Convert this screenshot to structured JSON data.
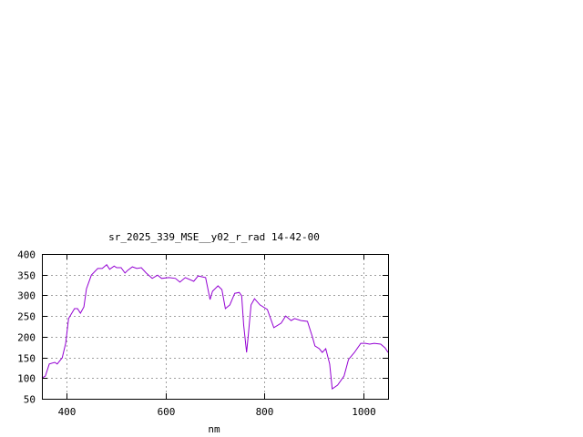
{
  "chart_data": {
    "type": "line",
    "title": "sr_2025_339_MSE__y02_r_rad 14-42-00",
    "xlabel": "nm",
    "ylabel": "",
    "xlim": [
      350,
      1050
    ],
    "ylim": [
      50,
      400
    ],
    "xticks": [
      400,
      600,
      800,
      1000
    ],
    "yticks": [
      50,
      100,
      150,
      200,
      250,
      300,
      350,
      400
    ],
    "grid": true,
    "line_color": "#9400d3",
    "series": [
      {
        "x": [
          350,
          357,
          365,
          376,
          381,
          391,
          398,
          404,
          416,
          422,
          428,
          435,
          440,
          450,
          463,
          472,
          481,
          487,
          496,
          501,
          510,
          518,
          524,
          533,
          542,
          551,
          561,
          573,
          584,
          592,
          607,
          620,
          629,
          640,
          657,
          666,
          681,
          690,
          695,
          706,
          714,
          721,
          730,
          740,
          749,
          754,
          758,
          764,
          767,
          773,
          780,
          791,
          806,
          819,
          834,
          843,
          854,
          861,
          874,
          887,
          897,
          902,
          911,
          917,
          924,
          932,
          937,
          948,
          961,
          970,
          982,
          995,
          1004,
          1013,
          1022,
          1035,
          1044,
          1050
        ],
        "y": [
          100,
          105,
          134,
          138,
          134,
          149,
          184,
          244,
          268,
          268,
          257,
          272,
          316,
          349,
          365,
          365,
          374,
          363,
          371,
          367,
          367,
          354,
          361,
          369,
          365,
          367,
          354,
          341,
          349,
          341,
          343,
          341,
          332,
          343,
          334,
          347,
          343,
          290,
          310,
          323,
          314,
          268,
          277,
          305,
          307,
          299,
          228,
          162,
          200,
          277,
          292,
          277,
          266,
          222,
          233,
          250,
          239,
          244,
          239,
          237,
          200,
          178,
          171,
          162,
          171,
          134,
          74,
          83,
          105,
          145,
          162,
          184,
          184,
          182,
          184,
          182,
          173,
          162
        ]
      }
    ]
  }
}
